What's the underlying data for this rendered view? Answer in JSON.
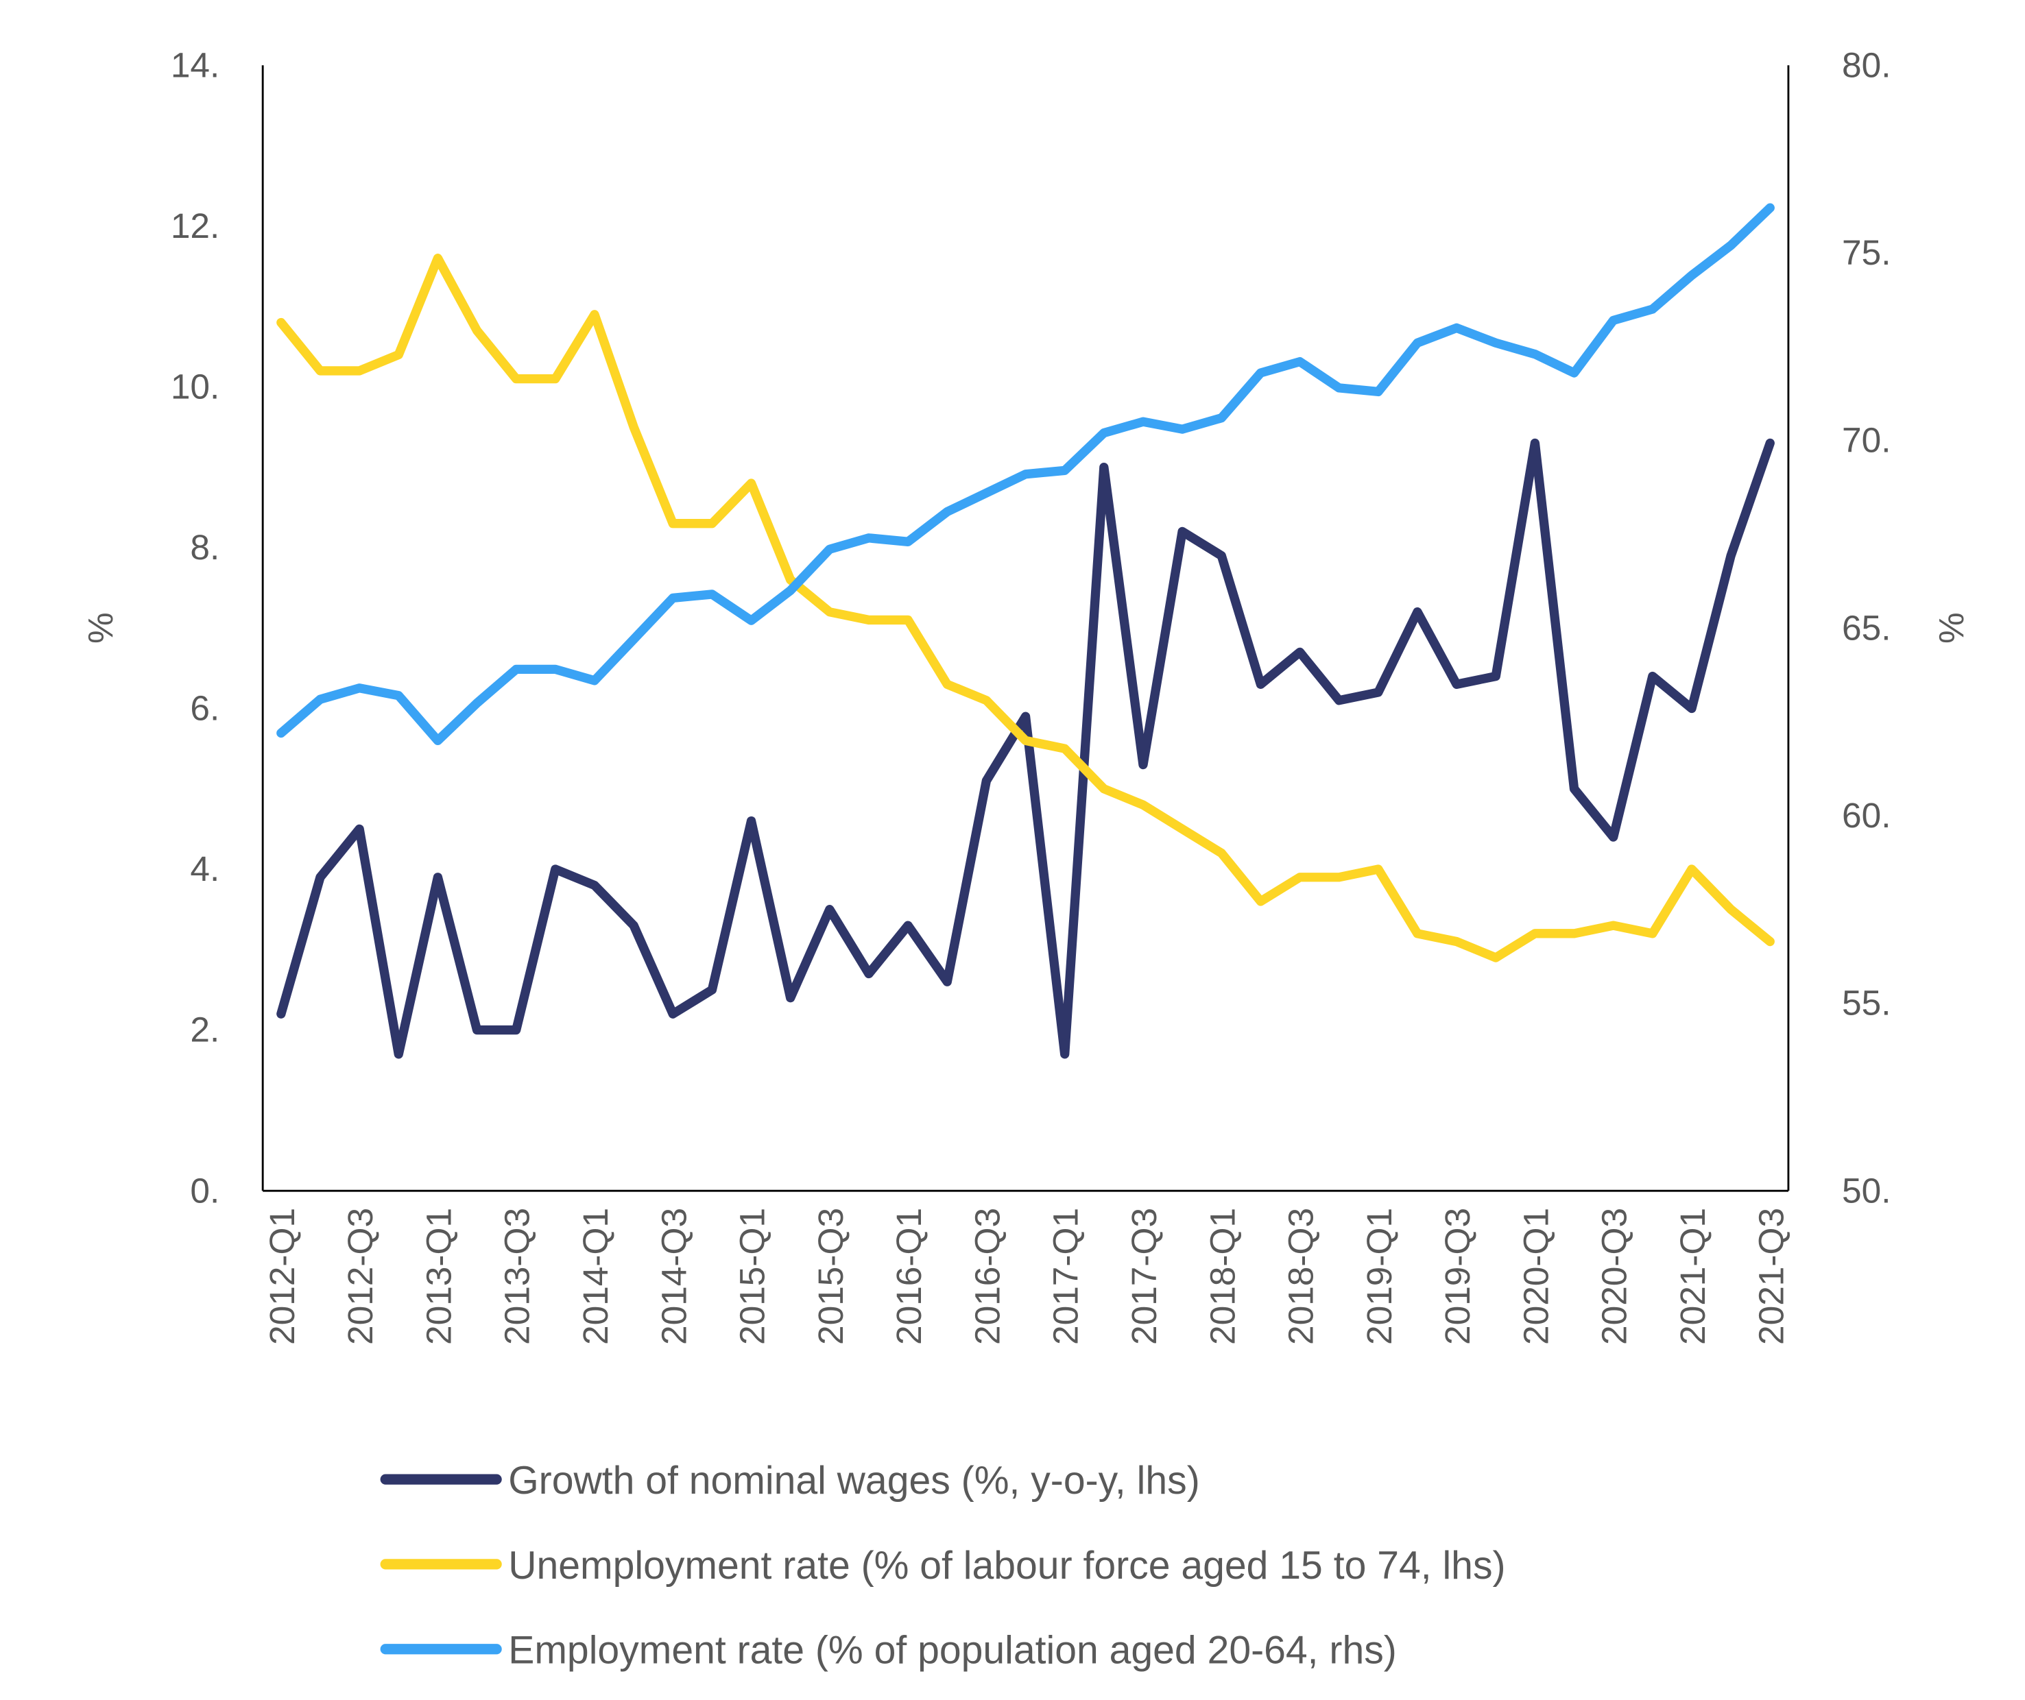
{
  "chart_data": {
    "type": "line",
    "title": "",
    "xlabel": "",
    "ylabel_left": "%",
    "ylabel_right": "%",
    "ylim_left": [
      0,
      14
    ],
    "ylim_right": [
      50,
      80
    ],
    "yticks_left": [
      "0.",
      "2.",
      "4.",
      "6.",
      "8.",
      "10.",
      "12.",
      "14."
    ],
    "yticks_right": [
      "50.",
      "55.",
      "60.",
      "65.",
      "70.",
      "75.",
      "80."
    ],
    "grid": false,
    "legend_position": "bottom",
    "x": [
      "2012-Q1",
      "2012-Q2",
      "2012-Q3",
      "2012-Q4",
      "2013-Q1",
      "2013-Q2",
      "2013-Q3",
      "2013-Q4",
      "2014-Q1",
      "2014-Q2",
      "2014-Q3",
      "2014-Q4",
      "2015-Q1",
      "2015-Q2",
      "2015-Q3",
      "2015-Q4",
      "2016-Q1",
      "2016-Q2",
      "2016-Q3",
      "2016-Q4",
      "2017-Q1",
      "2017-Q2",
      "2017-Q3",
      "2017-Q4",
      "2018-Q1",
      "2018-Q2",
      "2018-Q3",
      "2018-Q4",
      "2019-Q1",
      "2019-Q2",
      "2019-Q3",
      "2019-Q4",
      "2020-Q1",
      "2020-Q2",
      "2020-Q3",
      "2020-Q4",
      "2021-Q1",
      "2021-Q2",
      "2021-Q3"
    ],
    "series": [
      {
        "name": "Growth of nominal wages (%, y-o-y, lhs)",
        "axis": "left",
        "color": "#2f3669",
        "values": [
          2.2,
          3.9,
          4.5,
          1.7,
          3.9,
          2.0,
          2.0,
          4.0,
          3.8,
          3.3,
          2.2,
          2.5,
          4.6,
          2.4,
          3.5,
          2.7,
          3.3,
          2.6,
          5.1,
          5.9,
          1.7,
          9.0,
          5.3,
          8.2,
          7.9,
          6.3,
          6.7,
          6.1,
          6.2,
          7.2,
          6.3,
          6.4,
          9.3,
          5.0,
          4.4,
          6.4,
          6.0,
          7.9,
          9.3
        ]
      },
      {
        "name": "Unemployment rate (% of labour force aged 15 to 74, lhs)",
        "axis": "left",
        "color": "#fdd525",
        "values": [
          10.8,
          10.2,
          10.2,
          10.4,
          11.6,
          10.7,
          10.1,
          10.1,
          10.9,
          9.5,
          8.3,
          8.3,
          8.8,
          7.6,
          7.2,
          7.1,
          7.1,
          6.3,
          6.1,
          5.6,
          5.5,
          5.0,
          4.8,
          4.5,
          4.2,
          3.6,
          3.9,
          3.9,
          4.0,
          3.2,
          3.1,
          2.9,
          3.2,
          3.2,
          3.3,
          3.2,
          4.0,
          3.5,
          3.1
        ]
      },
      {
        "name": "Employment rate (% of population aged 20-64, rhs)",
        "axis": "right",
        "color": "#3aa3f5",
        "values": [
          62.2,
          63.1,
          63.4,
          63.2,
          62.0,
          63.0,
          63.9,
          63.9,
          63.6,
          64.7,
          65.8,
          65.9,
          65.2,
          66.0,
          67.1,
          67.4,
          67.3,
          68.1,
          68.6,
          69.1,
          69.2,
          70.2,
          70.5,
          70.3,
          70.6,
          71.8,
          72.1,
          71.4,
          71.3,
          72.6,
          73.0,
          72.6,
          72.3,
          71.8,
          73.2,
          73.5,
          74.4,
          75.2,
          76.2
        ]
      }
    ]
  }
}
